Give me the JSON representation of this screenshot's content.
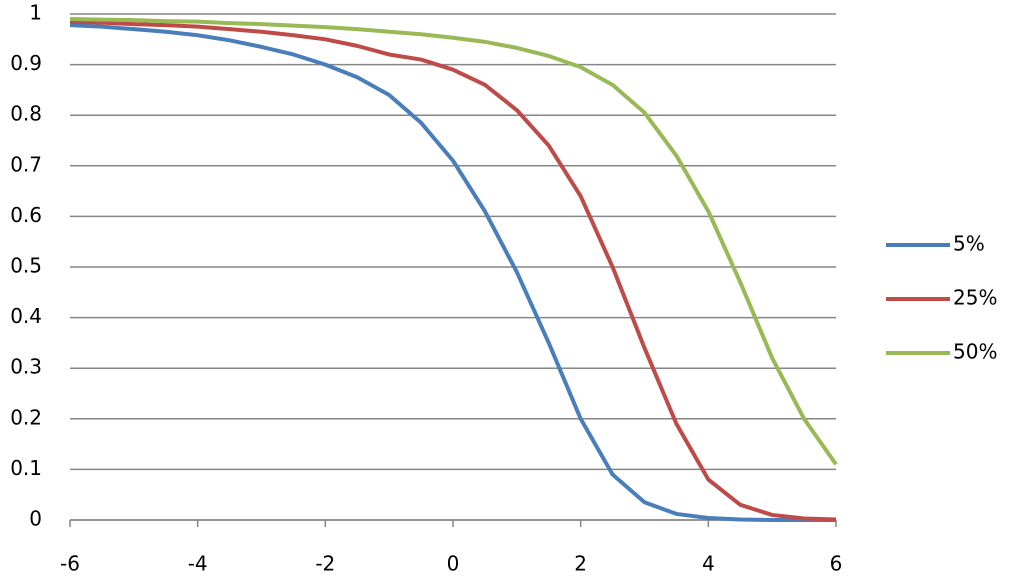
{
  "chart_data": {
    "type": "line",
    "x": [
      -6,
      -5.5,
      -5,
      -4.5,
      -4,
      -3.5,
      -3,
      -2.5,
      -2,
      -1.5,
      -1,
      -0.5,
      0,
      0.5,
      1,
      1.5,
      2,
      2.5,
      3,
      3.5,
      4,
      4.5,
      5,
      5.5,
      6
    ],
    "series": [
      {
        "name": "5%",
        "color": "#4a7ebb",
        "values": [
          0.978,
          0.975,
          0.97,
          0.965,
          0.958,
          0.948,
          0.935,
          0.92,
          0.9,
          0.875,
          0.84,
          0.785,
          0.71,
          0.61,
          0.49,
          0.35,
          0.2,
          0.09,
          0.035,
          0.012,
          0.004,
          0.001,
          0,
          0,
          0
        ]
      },
      {
        "name": "25%",
        "color": "#be4b48",
        "values": [
          0.985,
          0.983,
          0.98,
          0.978,
          0.975,
          0.97,
          0.965,
          0.958,
          0.95,
          0.937,
          0.92,
          0.91,
          0.89,
          0.86,
          0.81,
          0.74,
          0.64,
          0.5,
          0.34,
          0.19,
          0.08,
          0.03,
          0.01,
          0.003,
          0.001
        ]
      },
      {
        "name": "50%",
        "color": "#98b954",
        "values": [
          0.99,
          0.989,
          0.988,
          0.986,
          0.985,
          0.982,
          0.98,
          0.977,
          0.974,
          0.97,
          0.965,
          0.96,
          0.953,
          0.945,
          0.933,
          0.917,
          0.895,
          0.86,
          0.805,
          0.72,
          0.61,
          0.47,
          0.32,
          0.2,
          0.11
        ]
      }
    ],
    "xlim": [
      -6,
      6
    ],
    "xticks": [
      -6,
      -4,
      -2,
      0,
      2,
      4,
      6
    ],
    "ylim": [
      0,
      1
    ],
    "yticks": [
      0,
      0.1,
      0.2,
      0.3,
      0.4,
      0.5,
      0.6,
      0.7,
      0.8,
      0.9,
      1
    ],
    "grid": true,
    "legend": "right"
  }
}
